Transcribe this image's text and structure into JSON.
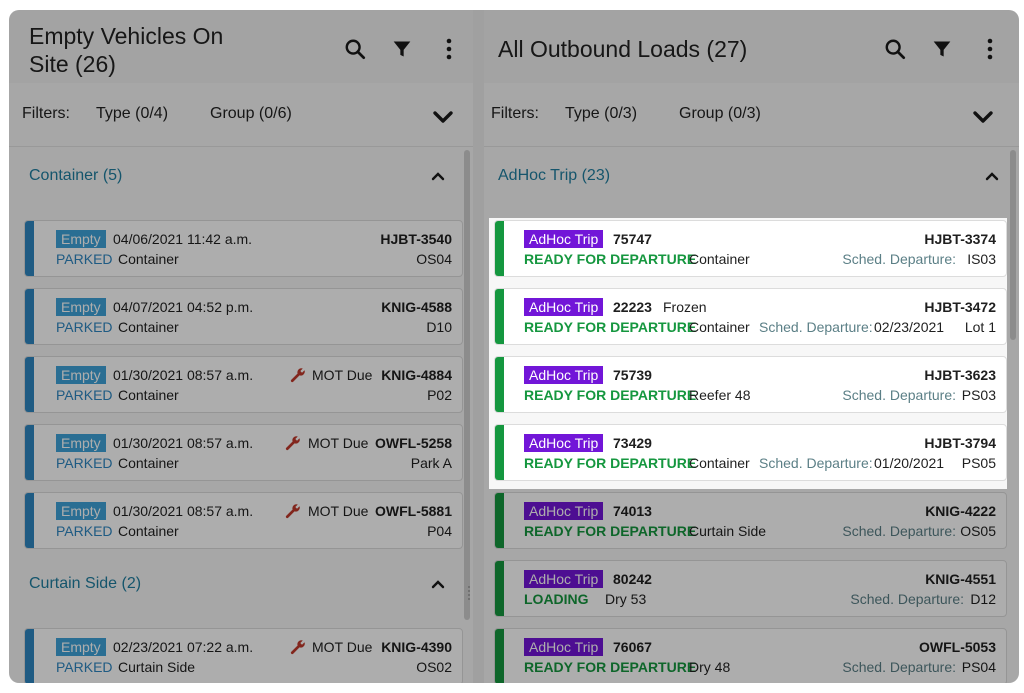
{
  "left": {
    "title": "Empty Vehicles On Site (26)",
    "filters": {
      "label": "Filters:",
      "type": "Type (0/4)",
      "group": "Group (0/6)"
    },
    "groups": [
      {
        "title": "Container (5)",
        "cards": [
          {
            "badge": "Empty",
            "datetime": "04/06/2021 11:42 a.m.",
            "mot": "",
            "id": "HJBT-3540",
            "status": "PARKED",
            "kind": "Container",
            "location": "OS04"
          },
          {
            "badge": "Empty",
            "datetime": "04/07/2021 04:52 p.m.",
            "mot": "",
            "id": "KNIG-4588",
            "status": "PARKED",
            "kind": "Container",
            "location": "D10"
          },
          {
            "badge": "Empty",
            "datetime": "01/30/2021 08:57 a.m.",
            "mot": "MOT Due",
            "id": "KNIG-4884",
            "status": "PARKED",
            "kind": "Container",
            "location": "P02"
          },
          {
            "badge": "Empty",
            "datetime": "01/30/2021 08:57 a.m.",
            "mot": "MOT Due",
            "id": "OWFL-5258",
            "status": "PARKED",
            "kind": "Container",
            "location": "Park A"
          },
          {
            "badge": "Empty",
            "datetime": "01/30/2021 08:57 a.m.",
            "mot": "MOT Due",
            "id": "OWFL-5881",
            "status": "PARKED",
            "kind": "Container",
            "location": "P04"
          }
        ]
      },
      {
        "title": "Curtain Side (2)",
        "cards": [
          {
            "badge": "Empty",
            "datetime": "02/23/2021 07:22 a.m.",
            "mot": "MOT Due",
            "id": "KNIG-4390",
            "status": "PARKED",
            "kind": "Curtain Side",
            "location": "OS02"
          }
        ]
      }
    ]
  },
  "right": {
    "title": "All Outbound Loads (27)",
    "filters": {
      "label": "Filters:",
      "type": "Type (0/3)",
      "group": "Group (0/3)"
    },
    "group": {
      "title": "AdHoc Trip (23)",
      "cards": [
        {
          "badge": "AdHoc Trip",
          "trip": "75747",
          "note": "",
          "id": "HJBT-3374",
          "status": "READY FOR DEPARTURE",
          "kind": "Container",
          "sched_label": "Sched. Departure:",
          "sched_date": "",
          "location": "IS03"
        },
        {
          "badge": "AdHoc Trip",
          "trip": "22223",
          "note": "Frozen",
          "id": "HJBT-3472",
          "status": "READY FOR DEPARTURE",
          "kind": "Container",
          "sched_label": "Sched. Departure:",
          "sched_date": "02/23/2021",
          "location": "Lot 1"
        },
        {
          "badge": "AdHoc Trip",
          "trip": "75739",
          "note": "",
          "id": "HJBT-3623",
          "status": "READY FOR DEPARTURE",
          "kind": "Reefer 48",
          "sched_label": "Sched. Departure:",
          "sched_date": "",
          "location": "PS03"
        },
        {
          "badge": "AdHoc Trip",
          "trip": "73429",
          "note": "",
          "id": "HJBT-3794",
          "status": "READY FOR DEPARTURE",
          "kind": "Container",
          "sched_label": "Sched. Departure:",
          "sched_date": "01/20/2021",
          "location": "PS05"
        },
        {
          "badge": "AdHoc Trip",
          "trip": "74013",
          "note": "",
          "id": "KNIG-4222",
          "status": "READY FOR DEPARTURE",
          "kind": "Curtain Side",
          "sched_label": "Sched. Departure:",
          "sched_date": "",
          "location": "OS05"
        },
        {
          "badge": "AdHoc Trip",
          "trip": "80242",
          "note": "",
          "id": "KNIG-4551",
          "status": "LOADING",
          "kind": "Dry 53",
          "sched_label": "Sched. Departure:",
          "sched_date": "",
          "location": "D12"
        },
        {
          "badge": "AdHoc Trip",
          "trip": "76067",
          "note": "",
          "id": "OWFL-5053",
          "status": "READY FOR DEPARTURE",
          "kind": "Dry 48",
          "sched_label": "Sched. Departure:",
          "sched_date": "",
          "location": "PS04"
        }
      ]
    }
  },
  "icons": {
    "search": "search-icon",
    "filter": "filter-icon",
    "more": "more-vert-icon",
    "wrench": "wrench-icon"
  },
  "colors": {
    "status_blue": "#2e86c1",
    "status_green": "#15973f",
    "empty_badge": "#3ea3d9",
    "adhoc_badge": "#7216d8",
    "mot_icon": "#c0392b",
    "group_title": "#1f7ea0"
  }
}
